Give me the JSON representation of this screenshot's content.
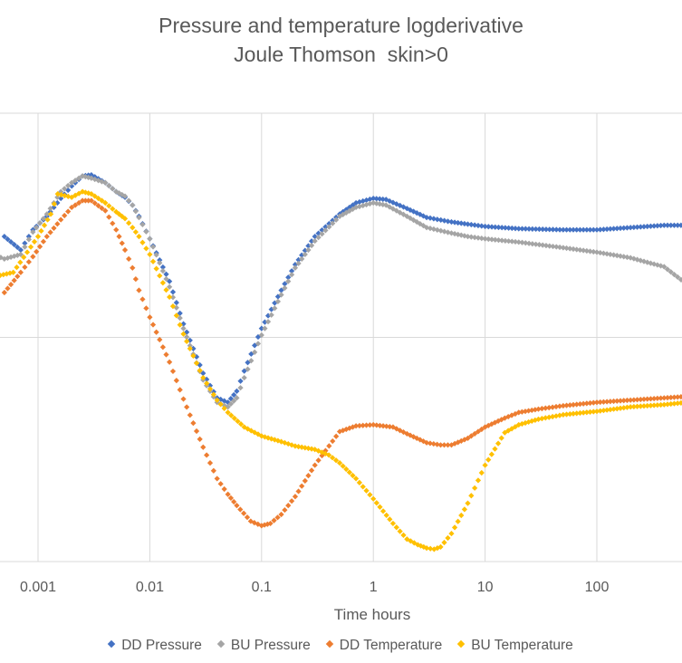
{
  "chart_data": {
    "type": "scatter",
    "title": "Pressure and temperature logderivative",
    "subtitle": "Joule Thomson  skin>0",
    "xlabel": "Time hours",
    "ylabel": "",
    "xscale": "log",
    "xlim": [
      0.0004,
      800
    ],
    "xticks": [
      "0.001",
      "0.01",
      "0.1",
      "1",
      "10",
      "100"
    ],
    "ylim": [
      0,
      4
    ],
    "yticks": [],
    "grid": true,
    "legend": "bottom",
    "series": [
      {
        "name": "DD Pressure",
        "color": "#4472C4",
        "points": [
          [
            0.0005,
            2.9
          ],
          [
            0.0007,
            2.78
          ],
          [
            0.0009,
            2.96
          ],
          [
            0.0012,
            3.08
          ],
          [
            0.0016,
            3.24
          ],
          [
            0.002,
            3.35
          ],
          [
            0.0025,
            3.44
          ],
          [
            0.003,
            3.45
          ],
          [
            0.004,
            3.38
          ],
          [
            0.005,
            3.3
          ],
          [
            0.006,
            3.25
          ],
          [
            0.007,
            3.18
          ],
          [
            0.008,
            3.08
          ],
          [
            0.01,
            2.88
          ],
          [
            0.015,
            2.5
          ],
          [
            0.02,
            2.12
          ],
          [
            0.03,
            1.68
          ],
          [
            0.04,
            1.46
          ],
          [
            0.05,
            1.42
          ],
          [
            0.06,
            1.52
          ],
          [
            0.07,
            1.7
          ],
          [
            0.1,
            2.08
          ],
          [
            0.15,
            2.42
          ],
          [
            0.2,
            2.65
          ],
          [
            0.3,
            2.9
          ],
          [
            0.5,
            3.1
          ],
          [
            0.7,
            3.2
          ],
          [
            1,
            3.24
          ],
          [
            1.3,
            3.23
          ],
          [
            2,
            3.15
          ],
          [
            3,
            3.07
          ],
          [
            5,
            3.03
          ],
          [
            7,
            3.01
          ],
          [
            10,
            2.99
          ],
          [
            20,
            2.97
          ],
          [
            50,
            2.96
          ],
          [
            100,
            2.96
          ],
          [
            200,
            2.98
          ],
          [
            400,
            3.0
          ],
          [
            800,
            3.0
          ]
        ]
      },
      {
        "name": "BU Pressure",
        "color": "#A5A5A5",
        "points": [
          [
            0.0004,
            2.74
          ],
          [
            0.0005,
            2.7
          ],
          [
            0.0007,
            2.74
          ],
          [
            0.0009,
            2.94
          ],
          [
            0.0012,
            3.1
          ],
          [
            0.0016,
            3.3
          ],
          [
            0.002,
            3.38
          ],
          [
            0.0025,
            3.44
          ],
          [
            0.003,
            3.42
          ],
          [
            0.004,
            3.38
          ],
          [
            0.005,
            3.3
          ],
          [
            0.006,
            3.26
          ],
          [
            0.007,
            3.18
          ],
          [
            0.008,
            3.07
          ],
          [
            0.01,
            2.88
          ],
          [
            0.015,
            2.45
          ],
          [
            0.02,
            2.08
          ],
          [
            0.03,
            1.62
          ],
          [
            0.04,
            1.42
          ],
          [
            0.05,
            1.38
          ],
          [
            0.06,
            1.46
          ],
          [
            0.07,
            1.64
          ],
          [
            0.1,
            2.02
          ],
          [
            0.15,
            2.38
          ],
          [
            0.2,
            2.62
          ],
          [
            0.3,
            2.86
          ],
          [
            0.5,
            3.08
          ],
          [
            0.7,
            3.16
          ],
          [
            1,
            3.2
          ],
          [
            1.3,
            3.18
          ],
          [
            2,
            3.08
          ],
          [
            3,
            2.98
          ],
          [
            5,
            2.93
          ],
          [
            7,
            2.9
          ],
          [
            10,
            2.88
          ],
          [
            20,
            2.85
          ],
          [
            50,
            2.8
          ],
          [
            100,
            2.76
          ],
          [
            200,
            2.71
          ],
          [
            400,
            2.63
          ],
          [
            800,
            2.4
          ]
        ]
      },
      {
        "name": "DD Temperature",
        "color": "#ED7D31",
        "points": [
          [
            0.0005,
            2.4
          ],
          [
            0.0007,
            2.58
          ],
          [
            0.0009,
            2.72
          ],
          [
            0.0012,
            2.9
          ],
          [
            0.0016,
            3.05
          ],
          [
            0.002,
            3.16
          ],
          [
            0.0025,
            3.22
          ],
          [
            0.003,
            3.22
          ],
          [
            0.004,
            3.13
          ],
          [
            0.005,
            2.96
          ],
          [
            0.006,
            2.78
          ],
          [
            0.007,
            2.62
          ],
          [
            0.008,
            2.42
          ],
          [
            0.01,
            2.18
          ],
          [
            0.015,
            1.78
          ],
          [
            0.02,
            1.45
          ],
          [
            0.03,
            1.02
          ],
          [
            0.04,
            0.74
          ],
          [
            0.05,
            0.6
          ],
          [
            0.06,
            0.5
          ],
          [
            0.08,
            0.36
          ],
          [
            0.1,
            0.32
          ],
          [
            0.12,
            0.34
          ],
          [
            0.15,
            0.42
          ],
          [
            0.2,
            0.58
          ],
          [
            0.3,
            0.86
          ],
          [
            0.5,
            1.16
          ],
          [
            0.7,
            1.21
          ],
          [
            1,
            1.22
          ],
          [
            1.5,
            1.2
          ],
          [
            2,
            1.14
          ],
          [
            3,
            1.06
          ],
          [
            4,
            1.04
          ],
          [
            5,
            1.04
          ],
          [
            7,
            1.1
          ],
          [
            10,
            1.2
          ],
          [
            15,
            1.28
          ],
          [
            20,
            1.33
          ],
          [
            30,
            1.36
          ],
          [
            50,
            1.39
          ],
          [
            100,
            1.42
          ],
          [
            200,
            1.44
          ],
          [
            400,
            1.46
          ],
          [
            800,
            1.48
          ]
        ]
      },
      {
        "name": "BU Temperature",
        "color": "#FFC000",
        "points": [
          [
            0.0004,
            2.54
          ],
          [
            0.0006,
            2.58
          ],
          [
            0.0008,
            2.76
          ],
          [
            0.001,
            2.9
          ],
          [
            0.0013,
            3.1
          ],
          [
            0.0015,
            3.28
          ],
          [
            0.002,
            3.25
          ],
          [
            0.0025,
            3.3
          ],
          [
            0.003,
            3.28
          ],
          [
            0.004,
            3.2
          ],
          [
            0.005,
            3.12
          ],
          [
            0.006,
            3.06
          ],
          [
            0.007,
            2.98
          ],
          [
            0.008,
            2.9
          ],
          [
            0.01,
            2.74
          ],
          [
            0.015,
            2.36
          ],
          [
            0.02,
            2.03
          ],
          [
            0.03,
            1.64
          ],
          [
            0.04,
            1.44
          ],
          [
            0.05,
            1.33
          ],
          [
            0.07,
            1.2
          ],
          [
            0.1,
            1.12
          ],
          [
            0.15,
            1.07
          ],
          [
            0.2,
            1.03
          ],
          [
            0.3,
            1.0
          ],
          [
            0.4,
            0.95
          ],
          [
            0.5,
            0.88
          ],
          [
            0.7,
            0.74
          ],
          [
            1,
            0.56
          ],
          [
            1.5,
            0.34
          ],
          [
            2,
            0.2
          ],
          [
            2.5,
            0.15
          ],
          [
            3,
            0.12
          ],
          [
            3.5,
            0.11
          ],
          [
            4,
            0.13
          ],
          [
            5,
            0.25
          ],
          [
            7,
            0.52
          ],
          [
            10,
            0.86
          ],
          [
            15,
            1.15
          ],
          [
            20,
            1.22
          ],
          [
            30,
            1.27
          ],
          [
            50,
            1.31
          ],
          [
            100,
            1.34
          ],
          [
            200,
            1.38
          ],
          [
            400,
            1.4
          ],
          [
            800,
            1.43
          ]
        ]
      }
    ]
  }
}
